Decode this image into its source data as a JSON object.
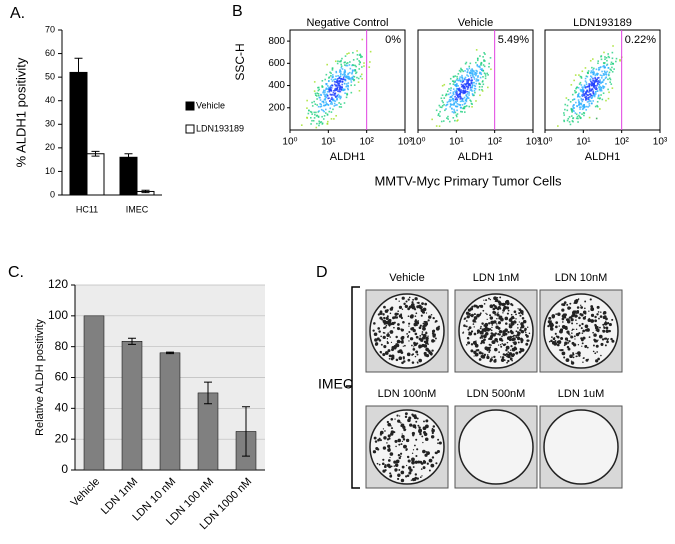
{
  "chart_data": [
    {
      "type": "bar",
      "panel_label": "A.",
      "y_label": "% ALDH1 positivity",
      "categories": [
        "HC11",
        "IMEC"
      ],
      "series": [
        {
          "name": "Vehicle",
          "color": "#000000",
          "values": [
            52,
            16
          ],
          "errors": [
            6,
            1.5
          ]
        },
        {
          "name": "LDN193189",
          "color": "#ffffff",
          "values": [
            17.5,
            1.5
          ],
          "errors": [
            1,
            0.5
          ]
        }
      ],
      "ylim": [
        0,
        70
      ],
      "yticks": [
        0,
        10,
        20,
        30,
        40,
        50,
        60,
        70
      ],
      "legend": "right"
    },
    {
      "type": "bar",
      "panel_label": "C.",
      "y_label": "Relative ALDH positivity",
      "categories": [
        "Vehicle",
        "LDN 1nM",
        "LDN 10 nM",
        "LDN 100 nM",
        "LDN 1000 nM"
      ],
      "series": [
        {
          "color": "#808080",
          "values": [
            100,
            83.5,
            76,
            50,
            25
          ],
          "errors": [
            null,
            2,
            0.5,
            7,
            16
          ]
        }
      ],
      "ylim": [
        0,
        120
      ],
      "yticks": [
        0,
        20,
        40,
        60,
        80,
        100,
        120
      ],
      "grid": true,
      "background": "#ececec"
    }
  ],
  "panel_b": {
    "label": "B",
    "y_label": "SSC-H",
    "x_label": "ALDH1",
    "caption": "MMTV-Myc Primary Tumor Cells",
    "ylim": [
      0,
      900
    ],
    "yticks": [
      200,
      400,
      600,
      800
    ],
    "xlim": [
      1,
      1000
    ],
    "xscale": "log",
    "xticks": [
      {
        "value": 1,
        "label": "10⁰"
      },
      {
        "value": 10,
        "label": "10¹"
      },
      {
        "value": 100,
        "label": "10²"
      },
      {
        "value": 1000,
        "label": "10³"
      }
    ],
    "gate": 100,
    "gate_color": "#e040e0",
    "plots": [
      {
        "title": "Negative Control",
        "percent": "0%"
      },
      {
        "title": "Vehicle",
        "percent": "5.49%"
      },
      {
        "title": "LDN193189",
        "percent": "0.22%"
      }
    ]
  },
  "panel_d": {
    "label": "D",
    "group": "IMEC",
    "plates": [
      "Vehicle",
      "LDN 1nM",
      "LDN 10nM",
      "LDN 100nM",
      "LDN 500nM",
      "LDN 1uM"
    ]
  }
}
